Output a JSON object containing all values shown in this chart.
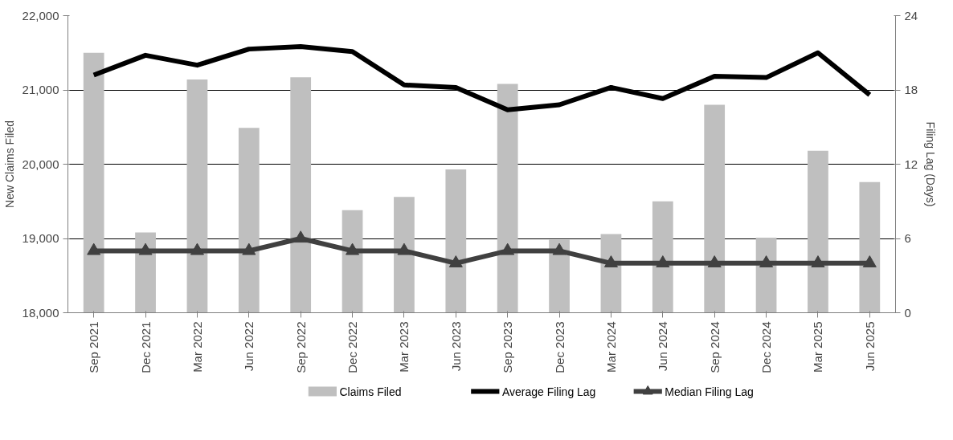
{
  "chart_data": {
    "type": "bar",
    "ylabel": "New Claims Filed",
    "y2label": "Filing Lag (Days)",
    "categories": [
      "Sep 2021",
      "Dec 2021",
      "Mar 2022",
      "Jun 2022",
      "Sep 2022",
      "Dec 2022",
      "Mar 2023",
      "Jun 2023",
      "Sep 2023",
      "Dec 2023",
      "Mar 2024",
      "Jun 2024",
      "Sep 2024",
      "Dec 2024",
      "Mar 2025",
      "Jun 2025"
    ],
    "series": [
      {
        "name": "Claims Filed",
        "color": "#bfbfbf",
        "values": [
          21500,
          19080,
          21140,
          20490,
          21170,
          19380,
          19560,
          19930,
          21080,
          18980,
          19060,
          19500,
          20800,
          19010,
          20180,
          19760
        ]
      },
      {
        "name": "Average Filing Lag",
        "type": "line",
        "axis": "y2",
        "color": "#000000",
        "marker": "none",
        "values": [
          19.2,
          20.8,
          20.0,
          21.3,
          21.5,
          21.1,
          18.4,
          18.2,
          16.4,
          16.8,
          18.2,
          17.3,
          19.1,
          19.0,
          21.0,
          17.6
        ]
      },
      {
        "name": "Median Filing Lag",
        "type": "line",
        "axis": "y2",
        "color": "#404040",
        "marker": "triangle",
        "values": [
          5,
          5,
          5,
          5,
          6,
          5,
          5,
          4,
          5,
          5,
          4,
          4,
          4,
          4,
          4,
          4
        ]
      }
    ],
    "ylim": [
      18000,
      22000
    ],
    "yticks": [
      {
        "value": 18000,
        "label": "18,000"
      },
      {
        "value": 19000,
        "label": "19,000"
      },
      {
        "value": 20000,
        "label": "20,000"
      },
      {
        "value": 21000,
        "label": "21,000"
      },
      {
        "value": 22000,
        "label": "22,000"
      }
    ],
    "y2lim": [
      0,
      24
    ],
    "y2ticks": [
      0,
      6,
      12,
      18,
      24
    ],
    "grid": "y",
    "legend": "bottom",
    "line_style": "solid"
  }
}
